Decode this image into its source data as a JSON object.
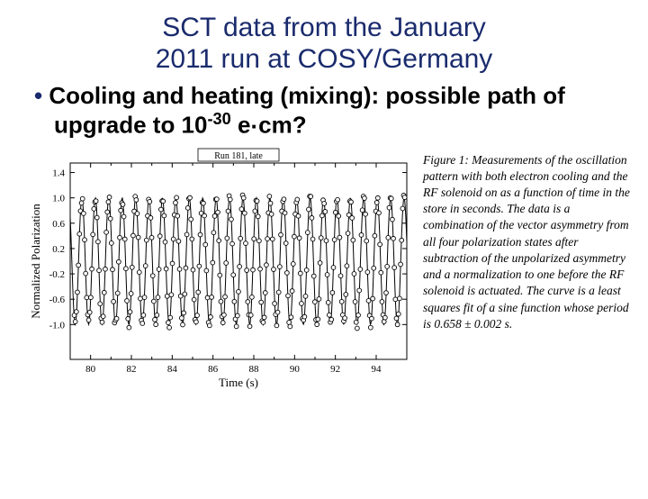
{
  "title_line1": "SCT data from the January",
  "title_line2": "2011 run at COSY/Germany",
  "bullet_prefix": "Cooling and heating (mixing): possible path of upgrade to 10",
  "bullet_exp": "-30",
  "bullet_suffix": " e",
  "bullet_dot": "·",
  "bullet_end": "cm?",
  "chart": {
    "run_label": "Run 181, late",
    "xlabel": "Time (s)",
    "ylabel": "Normalized Polarization",
    "xlim": [
      79,
      95.5
    ],
    "ylim": [
      -1.55,
      1.55
    ],
    "xticks": [
      80,
      82,
      84,
      86,
      88,
      90,
      92,
      94
    ],
    "yticks": [
      -1.0,
      -0.6,
      -0.2,
      0.2,
      0.6,
      1.0,
      1.4
    ],
    "ytick_labels": [
      "-1.0",
      "-0.6",
      "-0.2",
      "0.2",
      "0.6",
      "1.0",
      "1.4"
    ],
    "period": 0.658,
    "phase": 0.45,
    "amplitude": 1.0,
    "pts_per_period": 13,
    "noise": 0.07,
    "colors": {
      "axis": "#000000",
      "line": "#000000",
      "marker_fill": "#ffffff",
      "marker_stroke": "#000000",
      "bg": "#ffffff"
    },
    "marker_r": 2.4,
    "line_w": 1.0,
    "axis_w": 1.0,
    "font_axis": 13,
    "font_tick": 11
  },
  "caption": "Figure 1:   Measurements of the oscillation pattern with both electron cooling and the RF solenoid on as a function of time in the store in seconds. The data is a combination of the vector asymmetry from all four polarization states after subtraction of the unpolarized asymmetry and a normalization to one before the RF solenoid is actuated. The curve is a least squares fit of a sine function whose period is 0.658 ± 0.002 s."
}
